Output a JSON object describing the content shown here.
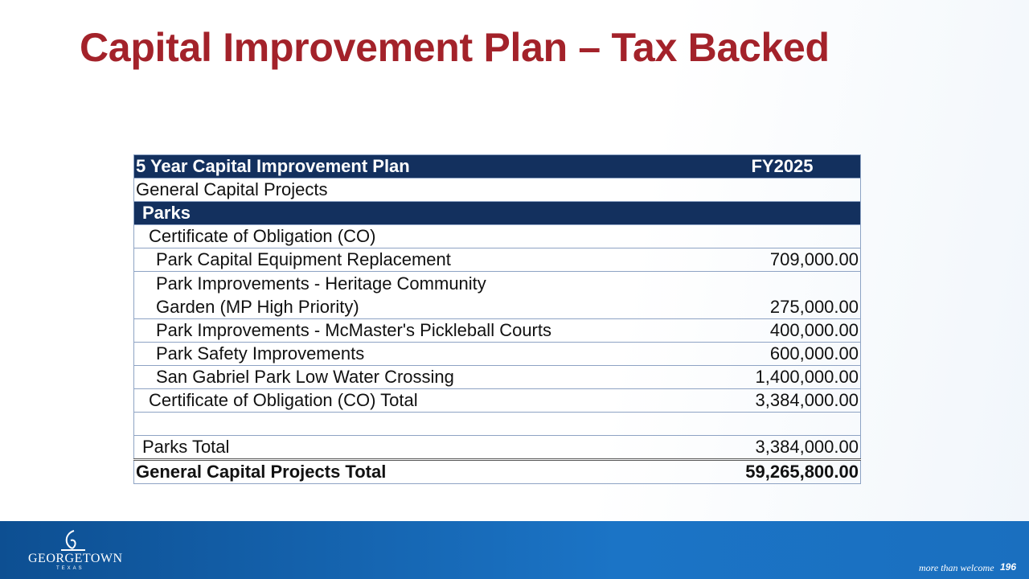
{
  "header": {
    "title": "Capital Improvement Plan – Tax Backed"
  },
  "table": {
    "columns": [
      "5 Year Capital Improvement Plan",
      "FY2025"
    ],
    "rows": [
      {
        "label": "General Capital Projects"
      },
      {
        "label": "Parks"
      },
      {
        "label": "Certificate of Obligation (CO)"
      },
      {
        "label": "Park Capital Equipment Replacement",
        "amount": "709,000.00"
      },
      {
        "label": "Park Improvements - Heritage Community Garden (MP High Priority)",
        "amount": "275,000.00"
      },
      {
        "label": "Park Improvements - McMaster's Pickleball Courts",
        "amount": "400,000.00"
      },
      {
        "label": "Park Safety Improvements",
        "amount": "600,000.00"
      },
      {
        "label": "San Gabriel Park Low Water Crossing",
        "amount": "1,400,000.00"
      },
      {
        "label": "Certificate of Obligation (CO) Total",
        "amount": "3,384,000.00"
      },
      {
        "label": "Parks Total",
        "amount": "3,384,000.00"
      },
      {
        "label": "General Capital Projects Total",
        "amount": "59,265,800.00"
      }
    ]
  },
  "footer": {
    "logo": "GEORGETOWN",
    "logo_sub": "TEXAS",
    "tagline": "more than welcome",
    "page": "196"
  }
}
